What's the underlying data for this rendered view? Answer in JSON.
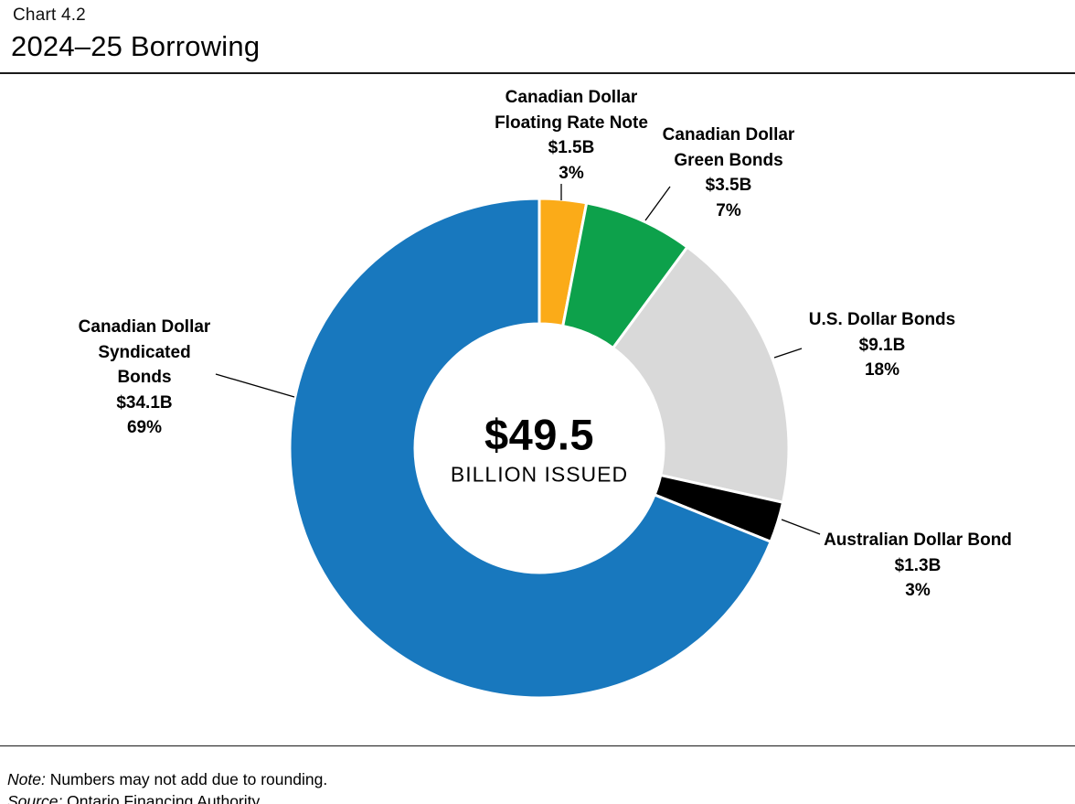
{
  "header": {
    "eyebrow": "Chart 4.2",
    "title": "2024–25 Borrowing"
  },
  "center": {
    "value": "$49.5",
    "caption": "BILLION ISSUED"
  },
  "footer": {
    "note_label": "Note:",
    "note_text": " Numbers may not add due to rounding.",
    "source_label": "Source:",
    "source_text": " Ontario Financing Authority."
  },
  "chart_data": {
    "type": "pie",
    "subtype": "donut",
    "title": "2024–25 Borrowing",
    "center_label": "$49.5 BILLION ISSUED",
    "total_billions": 49.5,
    "start_angle_deg": 0,
    "direction": "clockwise",
    "legend_position": "labels-around-chart",
    "slices": [
      {
        "label": "Canadian Dollar\nFloating Rate Note",
        "value": "$1.5B",
        "value_billions": 1.5,
        "pct": "3%",
        "pct_num": 3,
        "color": "#FBAB18"
      },
      {
        "label": "Canadian Dollar\nGreen Bonds",
        "value": "$3.5B",
        "value_billions": 3.5,
        "pct": "7%",
        "pct_num": 7,
        "color": "#0DA14B"
      },
      {
        "label": "U.S. Dollar Bonds",
        "value": "$9.1B",
        "value_billions": 9.1,
        "pct": "18%",
        "pct_num": 18,
        "color": "#D9D9D9"
      },
      {
        "label": "Australian Dollar Bond",
        "value": "$1.3B",
        "value_billions": 1.3,
        "pct": "3%",
        "pct_num": 3,
        "color": "#000000"
      },
      {
        "label": "Canadian Dollar\nSyndicated\nBonds",
        "value": "$34.1B",
        "value_billions": 34.1,
        "pct": "69%",
        "pct_num": 69,
        "color": "#1878BE"
      }
    ]
  }
}
